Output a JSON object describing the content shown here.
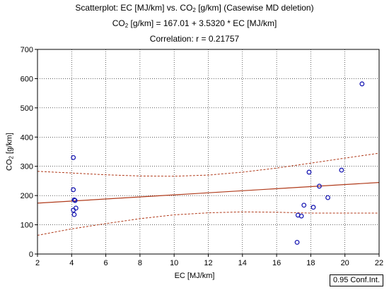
{
  "title": {
    "line1_pre": "Scatterplot: EC [MJ/km] vs. CO",
    "line1_sub": "2",
    "line1_post": " [g/km] (Casewise MD deletion)",
    "line2_pre": "CO",
    "line2_sub": "2",
    "line2_post": " [g/km] = 167.01 + 3.5320 * EC [MJ/km]",
    "line3": "Correlation: r = 0.21757"
  },
  "axes": {
    "xlabel": "EC [MJ/km]",
    "ylabel_pre": "CO",
    "ylabel_sub": "2",
    "ylabel_post": " [g/km]"
  },
  "legend": {
    "ci_label": "0.95 Conf.Int."
  },
  "colors": {
    "points": "#1c1cb4",
    "fit": "#b03a1a",
    "ci": "#b03a1a",
    "axis": "#000000",
    "grid": "#000000"
  },
  "chart_data": {
    "type": "scatter",
    "xlim": [
      2,
      22
    ],
    "ylim": [
      0,
      700
    ],
    "xticks": [
      "2",
      "4",
      "6",
      "8",
      "10",
      "12",
      "14",
      "16",
      "18",
      "20",
      "22"
    ],
    "yticks": [
      "0",
      "100",
      "200",
      "300",
      "400",
      "500",
      "600",
      "700"
    ],
    "grid": true,
    "points": [
      {
        "x": 4.1,
        "y": 330
      },
      {
        "x": 4.1,
        "y": 220
      },
      {
        "x": 4.15,
        "y": 185
      },
      {
        "x": 4.2,
        "y": 183
      },
      {
        "x": 4.25,
        "y": 157
      },
      {
        "x": 4.1,
        "y": 150
      },
      {
        "x": 4.15,
        "y": 135
      },
      {
        "x": 17.2,
        "y": 40
      },
      {
        "x": 17.25,
        "y": 133
      },
      {
        "x": 17.45,
        "y": 130
      },
      {
        "x": 17.6,
        "y": 167
      },
      {
        "x": 17.9,
        "y": 280
      },
      {
        "x": 18.15,
        "y": 160
      },
      {
        "x": 18.5,
        "y": 232
      },
      {
        "x": 19.0,
        "y": 193
      },
      {
        "x": 19.8,
        "y": 287
      },
      {
        "x": 21.0,
        "y": 582
      }
    ],
    "fit": {
      "intercept": 167.01,
      "slope": 3.532
    },
    "ci_upper": [
      {
        "x": 2,
        "y": 283
      },
      {
        "x": 4,
        "y": 277
      },
      {
        "x": 6,
        "y": 271
      },
      {
        "x": 8,
        "y": 267
      },
      {
        "x": 10,
        "y": 266
      },
      {
        "x": 12,
        "y": 270
      },
      {
        "x": 14,
        "y": 280
      },
      {
        "x": 16,
        "y": 294
      },
      {
        "x": 18,
        "y": 311
      },
      {
        "x": 20,
        "y": 328
      },
      {
        "x": 22,
        "y": 345
      }
    ],
    "ci_lower": [
      {
        "x": 2,
        "y": 64
      },
      {
        "x": 4,
        "y": 86
      },
      {
        "x": 6,
        "y": 104
      },
      {
        "x": 8,
        "y": 121
      },
      {
        "x": 10,
        "y": 134
      },
      {
        "x": 12,
        "y": 141
      },
      {
        "x": 14,
        "y": 144
      },
      {
        "x": 16,
        "y": 143
      },
      {
        "x": 18,
        "y": 140
      },
      {
        "x": 20,
        "y": 140
      },
      {
        "x": 22,
        "y": 140
      }
    ]
  }
}
